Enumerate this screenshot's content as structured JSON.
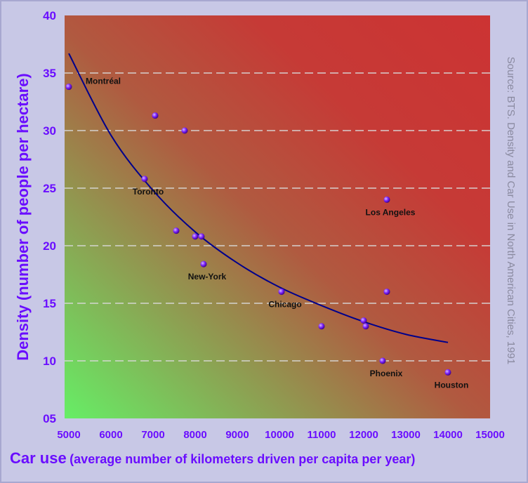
{
  "chart_data": {
    "type": "scatter",
    "xlabel_main": "Car use",
    "xlabel_sub": "(average number of kilometers driven per capita per year)",
    "ylabel": "Density (number of people per hectare)",
    "source": "Source: BTS. Density and Car Use in North American Cities, 1991",
    "xlim": [
      5000,
      15000
    ],
    "ylim": [
      5,
      40
    ],
    "x_ticks": [
      "5000",
      "6000",
      "7000",
      "8000",
      "9000",
      "10000",
      "11000",
      "12000",
      "13000",
      "14000",
      "15000"
    ],
    "y_ticks": [
      "05",
      "10",
      "15",
      "20",
      "25",
      "30",
      "35",
      "40"
    ],
    "grid": "horizontal dashed",
    "points": [
      {
        "x": 5000,
        "y": 33.8,
        "label": "Montréal"
      },
      {
        "x": 7050,
        "y": 31.3,
        "label": ""
      },
      {
        "x": 7750,
        "y": 30.0,
        "label": ""
      },
      {
        "x": 6800,
        "y": 25.8,
        "label": "Toronto"
      },
      {
        "x": 7550,
        "y": 21.3,
        "label": ""
      },
      {
        "x": 8000,
        "y": 20.8,
        "label": ""
      },
      {
        "x": 8150,
        "y": 20.8,
        "label": ""
      },
      {
        "x": 8200,
        "y": 18.4,
        "label": "New-York"
      },
      {
        "x": 10050,
        "y": 16.0,
        "label": "Chicago"
      },
      {
        "x": 11000,
        "y": 13.0,
        "label": ""
      },
      {
        "x": 12000,
        "y": 13.5,
        "label": ""
      },
      {
        "x": 12050,
        "y": 13.0,
        "label": ""
      },
      {
        "x": 12550,
        "y": 24.0,
        "label": "Los Angeles"
      },
      {
        "x": 12550,
        "y": 16.0,
        "label": ""
      },
      {
        "x": 12450,
        "y": 10.0,
        "label": "Phoenix"
      },
      {
        "x": 14000,
        "y": 9.0,
        "label": "Houston"
      }
    ],
    "trendline": {
      "type": "power",
      "x": [
        5000,
        6000,
        7000,
        8000,
        9000,
        10000,
        11000,
        12000,
        13000,
        14000
      ],
      "y": [
        36.7,
        29.6,
        24.8,
        21.2,
        18.5,
        16.4,
        14.8,
        13.4,
        12.3,
        11.6
      ]
    },
    "colors": {
      "background_low": "#66ee66",
      "background_high": "#cc3333",
      "point": "#6a0dff",
      "trendline": "#00008b",
      "axis_text": "#6a0dff"
    }
  }
}
